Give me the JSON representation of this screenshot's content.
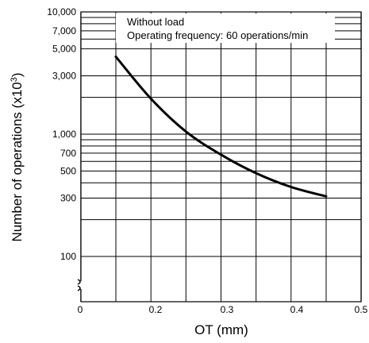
{
  "chart_data": {
    "type": "line",
    "xlabel": "OT (mm)",
    "ylabel": "Number of operations",
    "ylabel_unit": "(x10",
    "ylabel_unit_exp": "3",
    "ylabel_unit_close": ")",
    "x_ticks": [
      "0",
      "0.2",
      "0.3",
      "0.4",
      "0.5"
    ],
    "y_ticks": [
      "10,000",
      "7,000",
      "5,000",
      "3,000",
      "1,000",
      "700",
      "500",
      "300",
      "100"
    ],
    "annotations": [
      "Without load",
      "Operating frequency: 60 operations/min"
    ],
    "xlim": [
      0.1,
      0.5
    ],
    "y_scale": "log",
    "axis_break": "y below 100",
    "grid": true,
    "series": [
      {
        "x": [
          0.15,
          0.2,
          0.25,
          0.3,
          0.35,
          0.4,
          0.45
        ],
        "y": [
          4300,
          1950,
          1050,
          680,
          480,
          370,
          310
        ]
      }
    ]
  }
}
